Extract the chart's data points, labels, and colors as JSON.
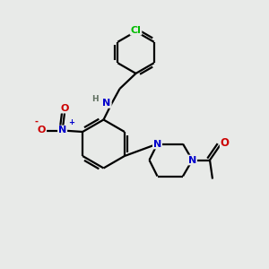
{
  "background_color": "#e8eae8",
  "atom_colors": {
    "C": "#000000",
    "N": "#0000cc",
    "O": "#cc0000",
    "Cl": "#00bb00",
    "H": "#607060"
  },
  "bond_color": "#000000",
  "figsize": [
    3.0,
    3.0
  ],
  "dpi": 100
}
